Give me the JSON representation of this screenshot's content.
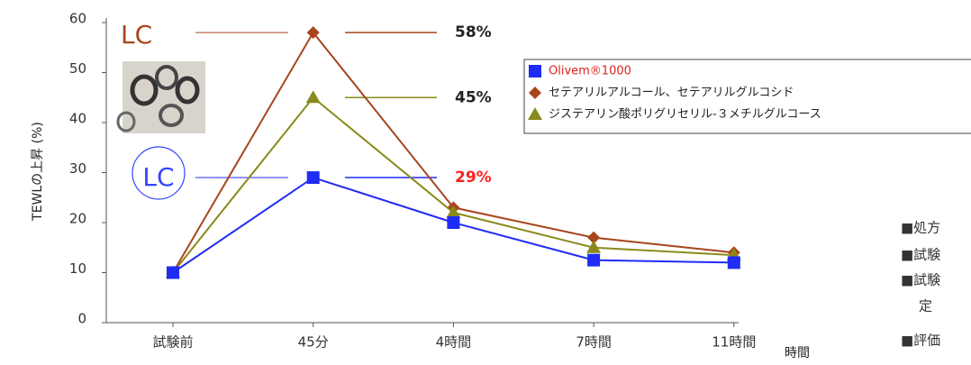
{
  "chart_data": {
    "type": "line",
    "y_label": "TEWLの上昇 (%)",
    "x_label": "時間",
    "categories": [
      "試験前",
      "45分",
      "4時間",
      "7時間",
      "11時間"
    ],
    "ylim": [
      0,
      60
    ],
    "yticks": [
      0,
      10,
      20,
      30,
      40,
      50,
      60
    ],
    "series": [
      {
        "name": "Olivem®1000",
        "color": "#1f2cf5",
        "marker": "square",
        "values": [
          10,
          29,
          20,
          12.5,
          12
        ]
      },
      {
        "name": "セテアリルアルコール、セテアリルグルコシド",
        "color": "#a8451c",
        "marker": "diamond",
        "values": [
          10,
          58,
          23,
          17,
          14
        ]
      },
      {
        "name": "ジステアリン酸ポリグリセリル-３メチルグルコース",
        "color": "#8a8a1c",
        "marker": "triangle",
        "values": [
          10,
          45,
          22,
          15,
          13.5
        ]
      }
    ],
    "annotations": [
      {
        "text": "LC",
        "color": "#a8451c"
      },
      {
        "text": "58%",
        "color": "#222"
      },
      {
        "text": "45%",
        "color": "#222"
      },
      {
        "text": "LC",
        "color": "#3344ff"
      },
      {
        "text": "29%",
        "color": "#ff2020"
      }
    ],
    "side_notes": [
      "■処方",
      "■試験",
      "■試験",
      "定",
      "■評価"
    ]
  }
}
